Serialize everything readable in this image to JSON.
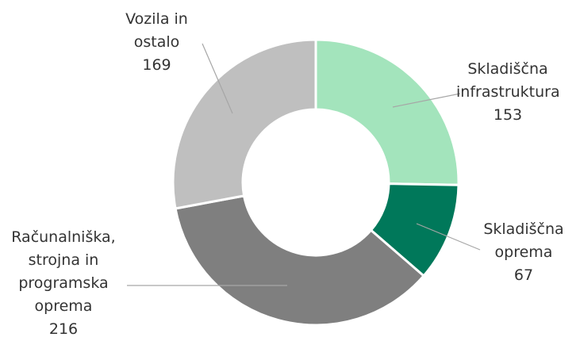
{
  "chart_data": {
    "type": "donut",
    "categories": [
      "Skladiščna infrastruktura",
      "Skladiščna oprema",
      "Računalniška, strojna in programska oprema",
      "Vozila in ostalo"
    ],
    "values": [
      153,
      67,
      216,
      169
    ],
    "colors": [
      "#a3e4bc",
      "#00785a",
      "#7f7f7f",
      "#bfbfbf"
    ]
  }
}
